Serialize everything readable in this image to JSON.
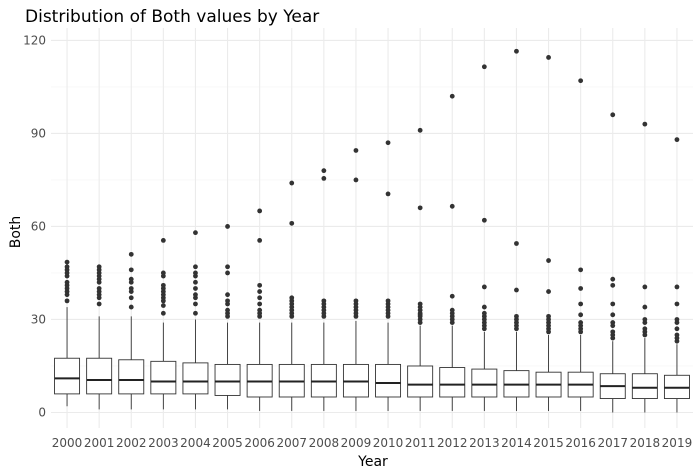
{
  "chart_data": {
    "type": "boxplot",
    "title": "Distribution of Both values by Year",
    "xlabel": "Year",
    "ylabel": "Both",
    "ylim": [
      -5,
      124
    ],
    "yticks": [
      0,
      30,
      60,
      90,
      120
    ],
    "grid": true,
    "categories": [
      "2000",
      "2001",
      "2002",
      "2003",
      "2004",
      "2005",
      "2006",
      "2007",
      "2008",
      "2009",
      "2010",
      "2011",
      "2012",
      "2013",
      "2014",
      "2015",
      "2016",
      "2017",
      "2018",
      "2019"
    ],
    "boxes": [
      {
        "year": "2000",
        "min": 2,
        "q1": 6,
        "median": 11,
        "q3": 17.5,
        "max": 34,
        "outliers": [
          36,
          38,
          39,
          40,
          41,
          42,
          44,
          45,
          46,
          47,
          48.5
        ]
      },
      {
        "year": "2001",
        "min": 1,
        "q1": 6,
        "median": 10.5,
        "q3": 17.5,
        "max": 31,
        "outliers": [
          35,
          37,
          38,
          39,
          40,
          42,
          43,
          44,
          45,
          46,
          47
        ]
      },
      {
        "year": "2002",
        "min": 1,
        "q1": 6,
        "median": 10.5,
        "q3": 17,
        "max": 31,
        "outliers": [
          34,
          37,
          39,
          40,
          42,
          43,
          46,
          51
        ]
      },
      {
        "year": "2003",
        "min": 1,
        "q1": 6,
        "median": 10,
        "q3": 16.5,
        "max": 29,
        "outliers": [
          32,
          34.5,
          36,
          37,
          38,
          39,
          40,
          41,
          44,
          45,
          55.5
        ]
      },
      {
        "year": "2004",
        "min": 1,
        "q1": 6,
        "median": 10,
        "q3": 16,
        "max": 30,
        "outliers": [
          32,
          35,
          37,
          38,
          40,
          42,
          44,
          45,
          47,
          58
        ]
      },
      {
        "year": "2005",
        "min": 1,
        "q1": 5.5,
        "median": 10,
        "q3": 15.5,
        "max": 29,
        "outliers": [
          31,
          32,
          33,
          35,
          36,
          38,
          45,
          47,
          60
        ]
      },
      {
        "year": "2006",
        "min": 0.5,
        "q1": 5,
        "median": 10,
        "q3": 15.5,
        "max": 29,
        "outliers": [
          31,
          32,
          33,
          35,
          37,
          39,
          41,
          55.5,
          65
        ]
      },
      {
        "year": "2007",
        "min": 0.5,
        "q1": 5,
        "median": 10,
        "q3": 15.5,
        "max": 29,
        "outliers": [
          31,
          32,
          33,
          34,
          35,
          36,
          37,
          61,
          74
        ]
      },
      {
        "year": "2008",
        "min": 0.5,
        "q1": 5,
        "median": 10,
        "q3": 15.5,
        "max": 29,
        "outliers": [
          31,
          32,
          33,
          34,
          35,
          36,
          75.5,
          78
        ]
      },
      {
        "year": "2009",
        "min": 0.5,
        "q1": 5,
        "median": 10,
        "q3": 15.5,
        "max": 29.5,
        "outliers": [
          31,
          32,
          33,
          34,
          35,
          36,
          75,
          84.5
        ]
      },
      {
        "year": "2010",
        "min": 0.5,
        "q1": 5,
        "median": 9.5,
        "q3": 15.5,
        "max": 29,
        "outliers": [
          31,
          32,
          33,
          34,
          35,
          36,
          70.5,
          87
        ]
      },
      {
        "year": "2011",
        "min": 0.5,
        "q1": 5,
        "median": 9,
        "q3": 15,
        "max": 28,
        "outliers": [
          29,
          30,
          31,
          31.5,
          32,
          33,
          34,
          35,
          66,
          91
        ]
      },
      {
        "year": "2012",
        "min": 0.5,
        "q1": 5,
        "median": 9,
        "q3": 14.5,
        "max": 28,
        "outliers": [
          29,
          30,
          31,
          32,
          33,
          37.5,
          66.5,
          102
        ]
      },
      {
        "year": "2013",
        "min": 0.5,
        "q1": 5,
        "median": 9,
        "q3": 14,
        "max": 26,
        "outliers": [
          27,
          28,
          29,
          30,
          31,
          32,
          34,
          40.5,
          62,
          111.5
        ]
      },
      {
        "year": "2014",
        "min": 0.5,
        "q1": 5,
        "median": 9,
        "q3": 13.5,
        "max": 26,
        "outliers": [
          27,
          28,
          29,
          30,
          31,
          39.5,
          54.5,
          116.5
        ]
      },
      {
        "year": "2015",
        "min": 0.5,
        "q1": 5,
        "median": 9,
        "q3": 13,
        "max": 25,
        "outliers": [
          26,
          27,
          28,
          29,
          30,
          31,
          39,
          49,
          114.5
        ]
      },
      {
        "year": "2016",
        "min": 0.5,
        "q1": 5,
        "median": 9,
        "q3": 13,
        "max": 25,
        "outliers": [
          26,
          27,
          28,
          29,
          31.5,
          35,
          40,
          46,
          107
        ]
      },
      {
        "year": "2017",
        "min": 0,
        "q1": 4.5,
        "median": 8.5,
        "q3": 12.5,
        "max": 23,
        "outliers": [
          24,
          25,
          26,
          28,
          29,
          31.5,
          35,
          41,
          43,
          96
        ]
      },
      {
        "year": "2018",
        "min": 0,
        "q1": 4.5,
        "median": 8,
        "q3": 12.5,
        "max": 24,
        "outliers": [
          25,
          26,
          27,
          29,
          30,
          34,
          40.5,
          93
        ]
      },
      {
        "year": "2019",
        "min": 0,
        "q1": 4.5,
        "median": 8,
        "q3": 12,
        "max": 22,
        "outliers": [
          23,
          24,
          25,
          27,
          29,
          30,
          35,
          40.5,
          88
        ]
      }
    ]
  }
}
